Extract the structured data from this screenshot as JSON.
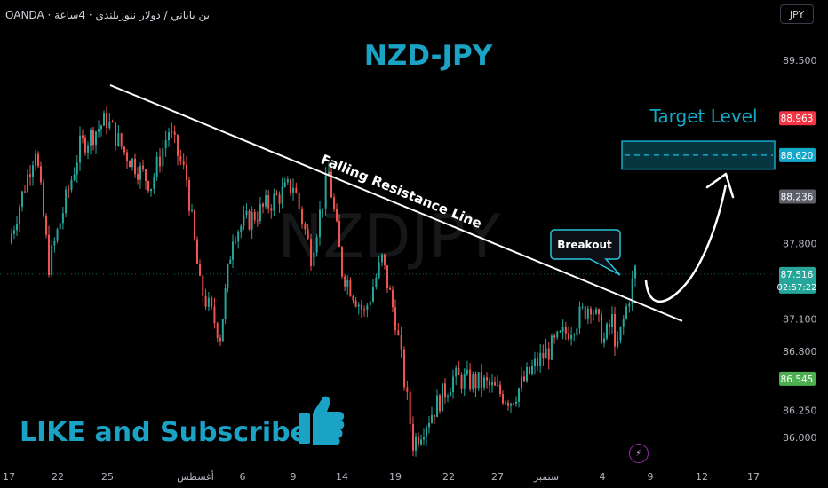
{
  "header": {
    "symbol_text": "OANDA · ين ياباني / دولار نيوزيلندي · 4ساعة",
    "currency_button": "JPY"
  },
  "annotations": {
    "title": "NZD-JPY",
    "watermark": "NZDJPY",
    "trendline_label": "Falling Resistance Line",
    "callout": "Breakout",
    "target_label": "Target Level",
    "footer_cta": "LIKE and Subscribe",
    "thumbs_icon": "thumbs-up-icon",
    "bolt_icon": "lightning-icon"
  },
  "colors": {
    "background": "#000000",
    "up_candle": "#26a69a",
    "down_candle": "#ef5350",
    "title": "#1ba3c6",
    "target_box": "#13a8c7",
    "line": "#ffffff"
  },
  "chart_data": {
    "type": "candlestick",
    "title": "NZD-JPY",
    "timeframe": "4h",
    "ylim": [
      85.87,
      89.72
    ],
    "y_ticks": [
      "89.500",
      "88.963",
      "88.620",
      "88.236",
      "87.800",
      "87.516",
      "87.100",
      "86.800",
      "86.545",
      "86.250",
      "86.000"
    ],
    "x_ticks": [
      "17",
      "22",
      "25",
      "أغسطس",
      "6",
      "9",
      "14",
      "19",
      "22",
      "27",
      "ستمبر",
      "4",
      "9",
      "12",
      "17"
    ],
    "price_labels": [
      {
        "value": "88.963",
        "color": "#f23645"
      },
      {
        "value": "88.620",
        "color": "#13a8c7"
      },
      {
        "value": "88.236",
        "color": "#5d606b"
      },
      {
        "value": "87.516",
        "sub": "02:57:22",
        "color": "#26a69a"
      },
      {
        "value": "86.545",
        "color": "#4caf50"
      }
    ],
    "current_price": 87.516,
    "countdown": "02:57:22",
    "target_zone": [
      88.49,
      88.75
    ],
    "resistance_line": {
      "from": {
        "date": "Jul 25",
        "price": 89.27
      },
      "to": {
        "date": "Sep 8",
        "price": 87.08
      }
    },
    "path_anchors": [
      {
        "x": "Jul 17",
        "price": 87.8
      },
      {
        "x": "Jul 19",
        "price": 88.7
      },
      {
        "x": "Jul 21",
        "price": 87.6
      },
      {
        "x": "Jul 23",
        "price": 88.7
      },
      {
        "x": "Jul 25",
        "price": 88.95
      },
      {
        "x": "Jul 26",
        "price": 88.65
      },
      {
        "x": "Jul 28",
        "price": 88.35
      },
      {
        "x": "Jul 29",
        "price": 88.85
      },
      {
        "x": "Jul 30",
        "price": 88.4
      },
      {
        "x": "Jul 31",
        "price": 87.4
      },
      {
        "x": "Aug 2",
        "price": 86.95
      },
      {
        "x": "Aug 5",
        "price": 87.9
      },
      {
        "x": "Aug 9",
        "price": 88.35
      },
      {
        "x": "Aug 11",
        "price": 87.7
      },
      {
        "x": "Aug 13",
        "price": 88.45
      },
      {
        "x": "Aug 14",
        "price": 87.55
      },
      {
        "x": "Aug 16",
        "price": 87.15
      },
      {
        "x": "Aug 18",
        "price": 87.65
      },
      {
        "x": "Aug 19",
        "price": 87.1
      },
      {
        "x": "Aug 20",
        "price": 85.95
      },
      {
        "x": "Aug 22",
        "price": 86.55
      },
      {
        "x": "Aug 25",
        "price": 86.5
      },
      {
        "x": "Aug 27",
        "price": 86.35
      },
      {
        "x": "Aug 29",
        "price": 86.7
      },
      {
        "x": "Sep 1",
        "price": 87.0
      },
      {
        "x": "Sep 3",
        "price": 87.25
      },
      {
        "x": "Sep 4",
        "price": 86.9
      },
      {
        "x": "Sep 5",
        "price": 87.15
      },
      {
        "x": "Sep 5",
        "price": 86.75
      },
      {
        "x": "Sep 6",
        "price": 87.2
      },
      {
        "x": "Sep 7",
        "price": 87.55
      }
    ]
  }
}
